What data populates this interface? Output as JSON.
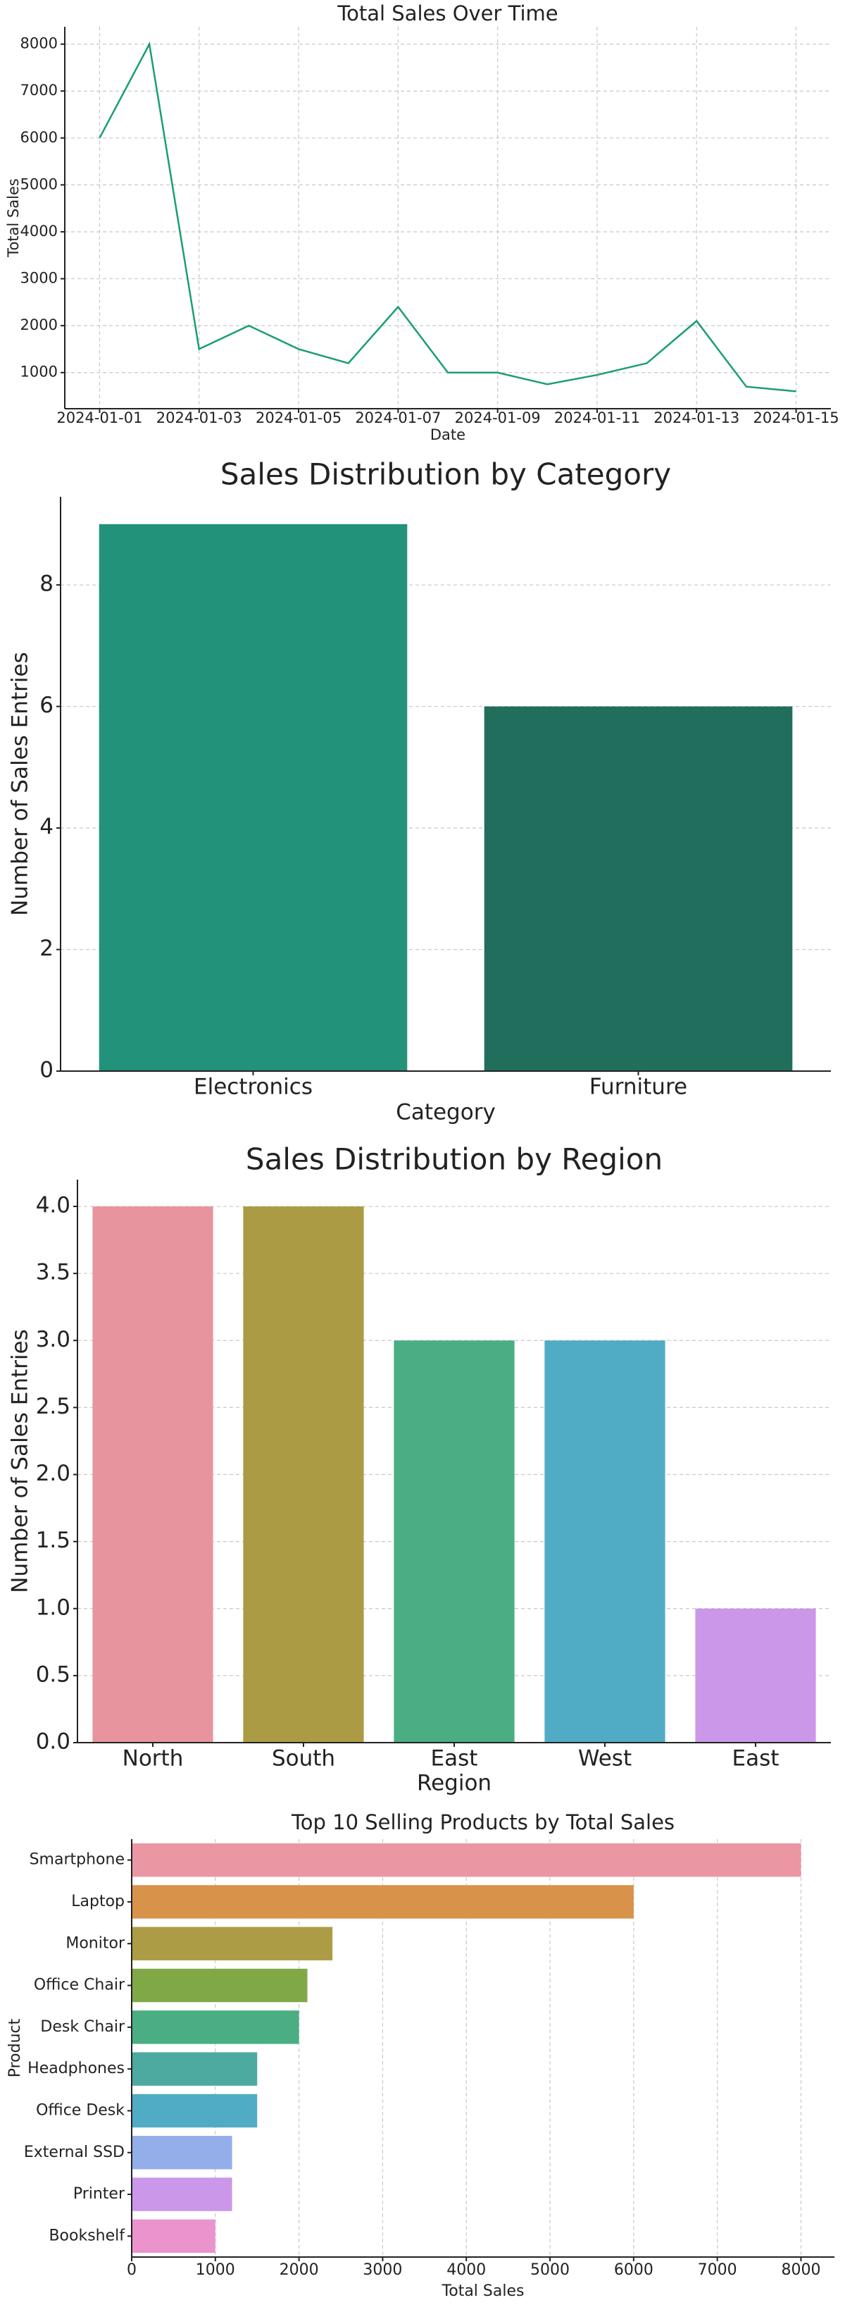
{
  "chart_data": [
    {
      "type": "line",
      "title": "Total Sales Over Time",
      "xlabel": "Date",
      "ylabel": "Total Sales",
      "x": [
        "2024-01-01",
        "2024-01-02",
        "2024-01-03",
        "2024-01-04",
        "2024-01-05",
        "2024-01-06",
        "2024-01-07",
        "2024-01-08",
        "2024-01-09",
        "2024-01-10",
        "2024-01-11",
        "2024-01-12",
        "2024-01-13",
        "2024-01-14",
        "2024-01-15"
      ],
      "values": [
        6000,
        8000,
        1500,
        2000,
        1500,
        1200,
        2400,
        1000,
        1000,
        750,
        950,
        1200,
        2100,
        700,
        600
      ],
      "color": "#1a9e74",
      "xticks": [
        "2024-01-01",
        "2024-01-03",
        "2024-01-05",
        "2024-01-07",
        "2024-01-09",
        "2024-01-11",
        "2024-01-13",
        "2024-01-15"
      ],
      "ylim": [
        230,
        8370
      ],
      "yticks": [
        1000,
        2000,
        3000,
        4000,
        5000,
        6000,
        7000,
        8000
      ],
      "grid": "both"
    },
    {
      "type": "bar",
      "title": "Sales Distribution by Category",
      "xlabel": "Category",
      "ylabel": "Number of Sales Entries",
      "categories": [
        "Electronics",
        "Furniture"
      ],
      "values": [
        9,
        6
      ],
      "colors": [
        "#23927a",
        "#216e5c"
      ],
      "ylim": [
        0,
        9.45
      ],
      "yticks": [
        0,
        2,
        4,
        6,
        8
      ],
      "grid": "y"
    },
    {
      "type": "bar",
      "title": "Sales Distribution by Region",
      "xlabel": "Region",
      "ylabel": "Number of Sales Entries",
      "categories": [
        "North",
        "South",
        "East",
        "West",
        "East"
      ],
      "values": [
        4,
        4,
        3,
        3,
        1
      ],
      "colors": [
        "#e8949f",
        "#ab9b45",
        "#4aae82",
        "#50acc5",
        "#cb97e8"
      ],
      "ylim": [
        0,
        4.2
      ],
      "yticks": [
        {
          "value": 0,
          "label": "0.0"
        },
        0.5,
        {
          "value": 1,
          "label": "1.0"
        },
        1.5,
        {
          "value": 2,
          "label": "2.0"
        },
        2.5,
        {
          "value": 3,
          "label": "3.0"
        },
        3.5,
        {
          "value": 4,
          "label": "4.0"
        }
      ],
      "grid": "y"
    },
    {
      "type": "barh",
      "title": "Top 10 Selling Products by Total Sales",
      "xlabel": "Total Sales",
      "ylabel": "Product",
      "categories": [
        "Smartphone",
        "Laptop",
        "Monitor",
        "Office Chair",
        "Desk Chair",
        "Headphones",
        "Office Desk",
        "External SSD",
        "Printer",
        "Bookshelf"
      ],
      "values": [
        8000,
        6000,
        2400,
        2100,
        2000,
        1500,
        1500,
        1200,
        1200,
        1000
      ],
      "colors": [
        "#ea96a3",
        "#d9924a",
        "#ac9c45",
        "#81a846",
        "#4aae82",
        "#4caaa0",
        "#50acc5",
        "#93aee8",
        "#cb97e8",
        "#ea93cc"
      ],
      "xlim": [
        0,
        8400
      ],
      "xticks": [
        0,
        1000,
        2000,
        3000,
        4000,
        5000,
        6000,
        7000,
        8000
      ],
      "grid": "x"
    }
  ]
}
